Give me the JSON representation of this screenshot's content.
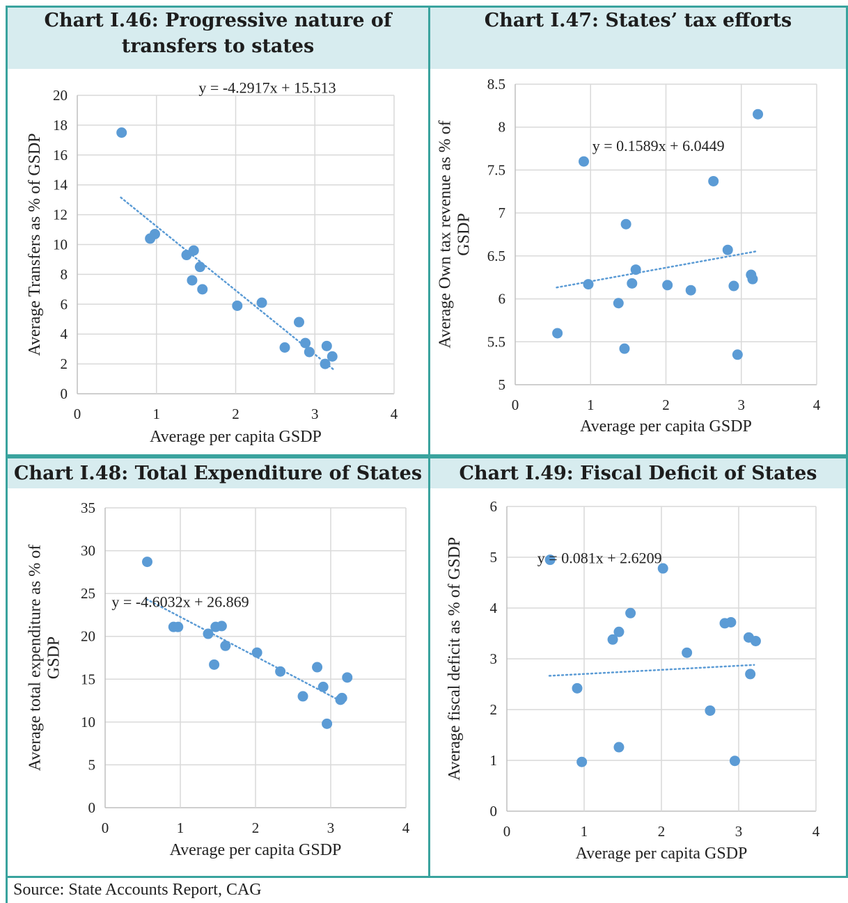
{
  "source": "Source: State Accounts Report, CAG",
  "colors": {
    "header_bg": "#d7ecef",
    "border": "#3aa39e",
    "marker": "#5b9bd5",
    "grid": "#d9d9d9"
  },
  "chart_data": [
    {
      "id": "c46",
      "type": "scatter",
      "title": "Chart I.46: Progressive nature of transfers to states",
      "title_lines": [
        "Chart I.46: Progressive nature of",
        "transfers to states"
      ],
      "xlabel": "Average per capita GSDP",
      "ylabel_lines": [
        "Average Transfers as % of GSDP"
      ],
      "xlim": [
        0,
        4
      ],
      "ylim": [
        0,
        20
      ],
      "xticks": [
        0,
        1,
        2,
        3,
        4
      ],
      "yticks": [
        0,
        2,
        4,
        6,
        8,
        10,
        12,
        14,
        16,
        18,
        20
      ],
      "xtick_labels": [
        "0",
        "1",
        "2",
        "3",
        "4"
      ],
      "ytick_labels": [
        "0",
        "2",
        "4",
        "6",
        "8",
        "10",
        "12",
        "14",
        "16",
        "18",
        "20"
      ],
      "grid": true,
      "trendline": {
        "label": "y = -4.2917x + 15.513",
        "slope": -4.2917,
        "intercept": 15.513,
        "x_range": [
          0.55,
          3.25
        ],
        "label_at": [
          2.4,
          20.5
        ]
      },
      "points": [
        [
          0.56,
          17.5
        ],
        [
          0.92,
          10.4
        ],
        [
          0.98,
          10.7
        ],
        [
          1.38,
          9.3
        ],
        [
          1.47,
          9.6
        ],
        [
          1.55,
          8.5
        ],
        [
          1.45,
          7.6
        ],
        [
          1.58,
          7.0
        ],
        [
          2.02,
          5.9
        ],
        [
          2.33,
          6.1
        ],
        [
          2.8,
          4.8
        ],
        [
          2.62,
          3.1
        ],
        [
          2.88,
          3.4
        ],
        [
          2.93,
          2.8
        ],
        [
          3.15,
          3.2
        ],
        [
          3.22,
          2.5
        ],
        [
          3.13,
          2.0
        ]
      ]
    },
    {
      "id": "c47",
      "type": "scatter",
      "title": "Chart I.47: States’ tax efforts",
      "title_lines": [
        "Chart I.47: States’ tax efforts"
      ],
      "xlabel": "Average per capita GSDP",
      "ylabel_lines": [
        "Average Own tax revenue as % of",
        "GSDP"
      ],
      "xlim": [
        0,
        4
      ],
      "ylim": [
        5,
        8.5
      ],
      "xticks": [
        0,
        1,
        2,
        3,
        4
      ],
      "yticks": [
        5,
        5.5,
        6,
        6.5,
        7,
        7.5,
        8,
        8.5
      ],
      "xtick_labels": [
        "0",
        "1",
        "2",
        "3",
        "4"
      ],
      "ytick_labels": [
        "5",
        "5.5",
        "6",
        "6.5",
        "7",
        "7.5",
        "8",
        "8.5"
      ],
      "grid": true,
      "trendline": {
        "label": "y = 0.1589x + 6.0449",
        "slope": 0.1589,
        "intercept": 6.0449,
        "x_range": [
          0.55,
          3.2
        ],
        "label_at": [
          1.9,
          7.78
        ]
      },
      "points": [
        [
          0.56,
          5.6
        ],
        [
          0.91,
          7.6
        ],
        [
          0.97,
          6.17
        ],
        [
          1.37,
          5.95
        ],
        [
          1.47,
          6.87
        ],
        [
          1.45,
          5.42
        ],
        [
          1.55,
          6.18
        ],
        [
          1.6,
          6.34
        ],
        [
          2.02,
          6.16
        ],
        [
          2.33,
          6.1
        ],
        [
          2.63,
          7.37
        ],
        [
          2.82,
          6.57
        ],
        [
          2.9,
          6.15
        ],
        [
          2.95,
          5.35
        ],
        [
          3.13,
          6.28
        ],
        [
          3.15,
          6.23
        ],
        [
          3.22,
          8.15
        ]
      ]
    },
    {
      "id": "c48",
      "type": "scatter",
      "title": "Chart I.48: Total Expenditure of States",
      "title_lines": [
        "Chart I.48: Total Expenditure of States"
      ],
      "xlabel": "Average per capita GSDP",
      "ylabel_lines": [
        "Average total expenditure as % of",
        "GSDP"
      ],
      "xlim": [
        0,
        4
      ],
      "ylim": [
        0,
        35
      ],
      "xticks": [
        0,
        1,
        2,
        3,
        4
      ],
      "yticks": [
        0,
        5,
        10,
        15,
        20,
        25,
        30,
        35
      ],
      "xtick_labels": [
        "0",
        "1",
        "2",
        "3",
        "4"
      ],
      "ytick_labels": [
        "0",
        "5",
        "10",
        "15",
        "20",
        "25",
        "30",
        "35"
      ],
      "grid": true,
      "trendline": {
        "label": "y = -4.6032x + 26.869",
        "slope": -4.6032,
        "intercept": 26.869,
        "x_range": [
          0.55,
          3.2
        ],
        "label_at": [
          1.0,
          24.0
        ]
      },
      "points": [
        [
          0.56,
          28.7
        ],
        [
          0.91,
          21.1
        ],
        [
          0.97,
          21.1
        ],
        [
          1.37,
          20.3
        ],
        [
          1.47,
          21.1
        ],
        [
          1.55,
          21.2
        ],
        [
          1.45,
          16.7
        ],
        [
          1.6,
          18.9
        ],
        [
          2.02,
          18.1
        ],
        [
          2.33,
          15.9
        ],
        [
          2.63,
          13.0
        ],
        [
          2.82,
          16.4
        ],
        [
          2.9,
          14.1
        ],
        [
          2.95,
          9.8
        ],
        [
          3.13,
          12.6
        ],
        [
          3.15,
          12.8
        ],
        [
          3.22,
          15.2
        ]
      ]
    },
    {
      "id": "c49",
      "type": "scatter",
      "title": "Chart I.49: Fiscal Deficit of States",
      "title_lines": [
        "Chart I.49: Fiscal Deficit of States"
      ],
      "xlabel": "Average per capita GSDP",
      "ylabel_lines": [
        "Average fiscal deficit as % of GSDP"
      ],
      "xlim": [
        0,
        4
      ],
      "ylim": [
        0,
        6
      ],
      "xticks": [
        0,
        1,
        2,
        3,
        4
      ],
      "yticks": [
        0,
        1,
        2,
        3,
        4,
        5,
        6
      ],
      "xtick_labels": [
        "0",
        "1",
        "2",
        "3",
        "4"
      ],
      "ytick_labels": [
        "0",
        "1",
        "2",
        "3",
        "4",
        "5",
        "6"
      ],
      "grid": true,
      "trendline": {
        "label": "y = 0.081x + 2.6209",
        "slope": 0.081,
        "intercept": 2.6209,
        "x_range": [
          0.55,
          3.2
        ],
        "label_at": [
          1.2,
          4.98
        ]
      },
      "points": [
        [
          0.56,
          4.95
        ],
        [
          0.91,
          2.42
        ],
        [
          0.97,
          0.97
        ],
        [
          1.37,
          3.38
        ],
        [
          1.45,
          3.53
        ],
        [
          1.45,
          1.26
        ],
        [
          1.6,
          3.9
        ],
        [
          2.02,
          4.78
        ],
        [
          2.33,
          3.12
        ],
        [
          2.63,
          1.98
        ],
        [
          2.82,
          3.7
        ],
        [
          2.9,
          3.72
        ],
        [
          2.95,
          0.99
        ],
        [
          3.13,
          3.42
        ],
        [
          3.15,
          2.7
        ],
        [
          3.22,
          3.35
        ]
      ]
    }
  ]
}
